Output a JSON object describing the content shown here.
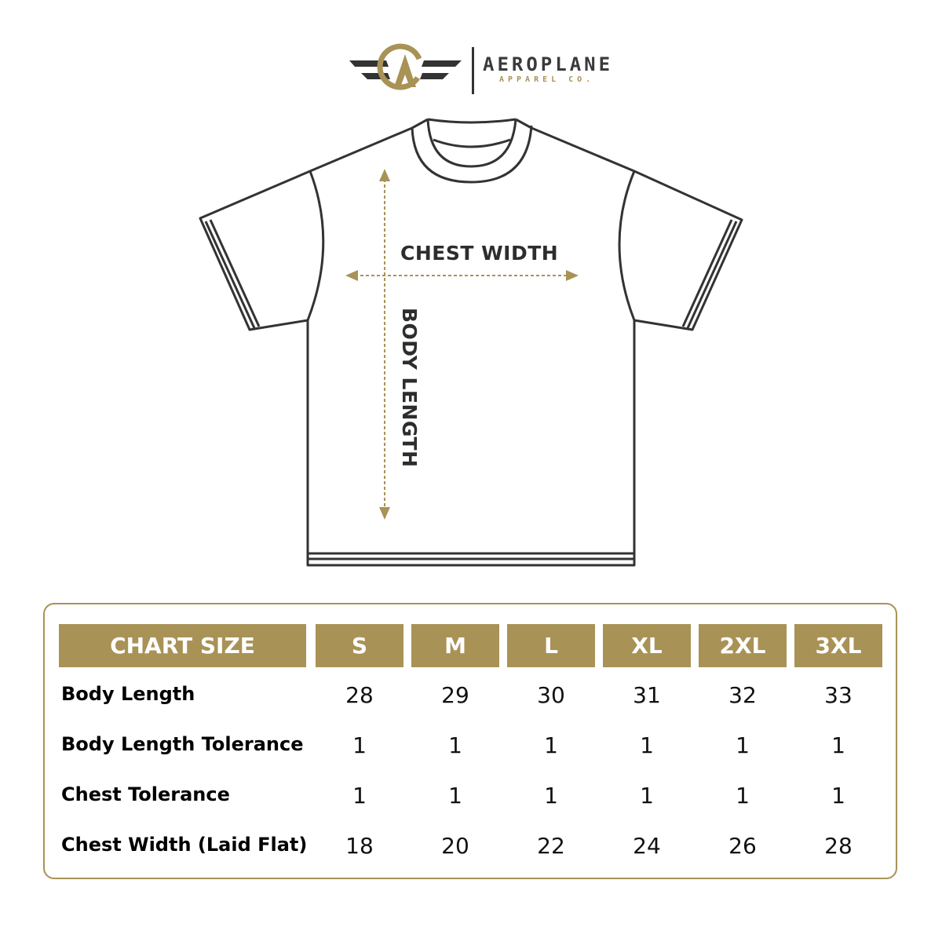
{
  "brand": {
    "name": "AEROPLANE",
    "tagline": "APPAREL CO."
  },
  "colors": {
    "accent": "#a89256",
    "outline": "#333333"
  },
  "diagram": {
    "chest_label": "CHEST WIDTH",
    "length_label": "BODY LENGTH"
  },
  "table": {
    "header": "CHART SIZE",
    "sizes": [
      "S",
      "M",
      "L",
      "XL",
      "2XL",
      "3XL"
    ],
    "rows": [
      {
        "label": "Body Length",
        "values": [
          "28",
          "29",
          "30",
          "31",
          "32",
          "33"
        ]
      },
      {
        "label": "Body Length Tolerance",
        "values": [
          "1",
          "1",
          "1",
          "1",
          "1",
          "1"
        ]
      },
      {
        "label": "Chest Tolerance",
        "values": [
          "1",
          "1",
          "1",
          "1",
          "1",
          "1"
        ]
      },
      {
        "label": "Chest Width (Laid Flat)",
        "values": [
          "18",
          "20",
          "22",
          "24",
          "26",
          "28"
        ]
      }
    ]
  }
}
